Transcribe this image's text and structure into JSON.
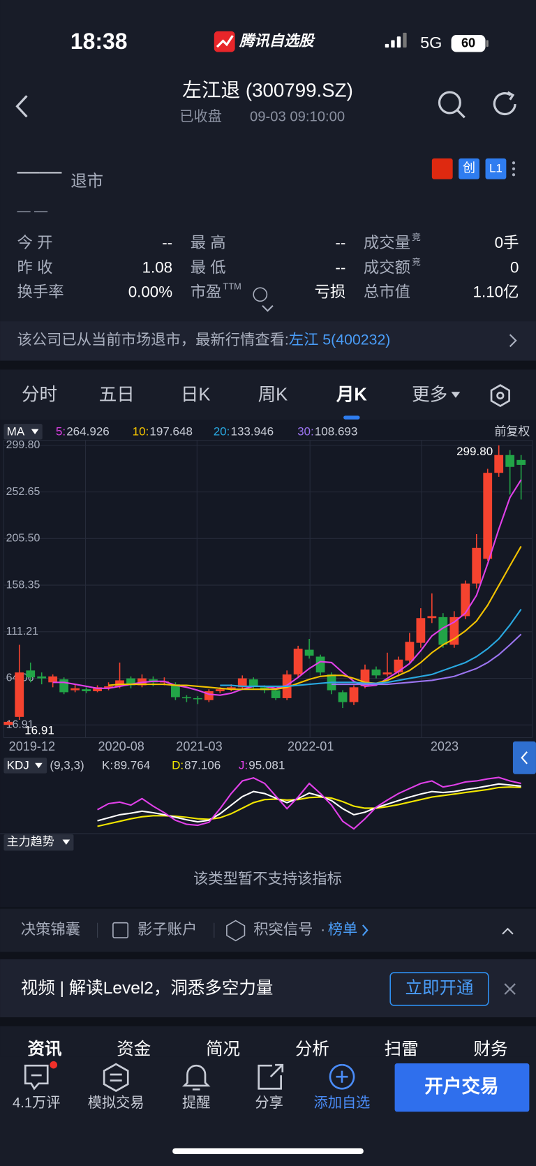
{
  "status_bar": {
    "time": "18:38",
    "app": "腾讯自选股",
    "network": "5G",
    "battery": "60"
  },
  "header": {
    "title": "左江退 (300799.SZ)",
    "status": "已收盘",
    "datetime": "09-03 09:10:00"
  },
  "quote": {
    "price": "——",
    "state": "退市",
    "change": "— —",
    "badges": [
      "创",
      "L1"
    ]
  },
  "stats": [
    [
      {
        "label": "今 开",
        "value": "--"
      },
      {
        "label": "最 高",
        "value": "--"
      },
      {
        "label": "成交量",
        "sup": "竞",
        "value": "0手"
      }
    ],
    [
      {
        "label": "昨 收",
        "value": "1.08"
      },
      {
        "label": "最 低",
        "value": "--"
      },
      {
        "label": "成交额",
        "sup": "竞",
        "value": "0"
      }
    ],
    [
      {
        "label": "换手率",
        "value": "0.00%"
      },
      {
        "label": "市盈",
        "sup": "TTM",
        "value": "亏损"
      },
      {
        "label": "总市值",
        "value": "1.10亿"
      }
    ]
  ],
  "notice": {
    "text": "该公司已从当前市场退市，最新行情查看:",
    "link": "左江 5(400232)"
  },
  "tabs": {
    "items": [
      "分时",
      "五日",
      "日K",
      "周K",
      "月K",
      "更多"
    ],
    "active": 4
  },
  "chart_data": [
    {
      "type": "candlestick",
      "indicator": "MA",
      "adjust": "前复权",
      "up_color": "#f5432f",
      "down_color": "#22a447",
      "categories": [
        null,
        null,
        "2019-12",
        null,
        null,
        null,
        null,
        null,
        null,
        null,
        "2020-08",
        null,
        null,
        null,
        null,
        null,
        null,
        "2021-03",
        null,
        null,
        null,
        null,
        null,
        null,
        null,
        null,
        null,
        "2022-01",
        null,
        null,
        null,
        null,
        null,
        null,
        null,
        null,
        null,
        null,
        null,
        "2023",
        null,
        null,
        null,
        null,
        null,
        null,
        null
      ],
      "open": [
        17,
        25,
        72,
        66,
        60,
        63,
        52,
        53,
        51,
        54,
        56,
        64,
        57,
        63,
        60,
        58,
        45,
        44,
        42,
        51,
        53,
        55,
        63,
        55,
        52,
        44,
        68,
        93,
        86,
        68,
        50,
        40,
        56,
        73,
        68,
        70,
        82,
        100,
        125,
        126,
        98,
        127,
        160,
        185,
        272,
        290,
        285
      ],
      "high": [
        21,
        98,
        80,
        70,
        68,
        65,
        58,
        55,
        57,
        60,
        80,
        66,
        68,
        66,
        65,
        60,
        47,
        46,
        53,
        55,
        58,
        67,
        65,
        57,
        54,
        72,
        97,
        104,
        88,
        70,
        52,
        57,
        78,
        76,
        90,
        86,
        110,
        135,
        150,
        130,
        132,
        163,
        210,
        276,
        299.8,
        295,
        290
      ],
      "low": [
        16.91,
        22,
        60,
        58,
        55,
        48,
        50,
        49,
        50,
        52,
        54,
        54,
        55,
        56,
        57,
        42,
        40,
        38,
        40,
        49,
        51,
        53,
        54,
        49,
        42,
        42,
        65,
        84,
        67,
        48,
        34,
        37,
        54,
        64,
        66,
        68,
        80,
        95,
        120,
        95,
        95,
        124,
        155,
        183,
        268,
        250,
        245
      ],
      "close": [
        20,
        70,
        65,
        64,
        66,
        50,
        54,
        51,
        55,
        56,
        62,
        57,
        64,
        60,
        61,
        45,
        44,
        43,
        51,
        53,
        55,
        64,
        56,
        52,
        44,
        68,
        94,
        87,
        70,
        52,
        40,
        55,
        73,
        67,
        70,
        83,
        101,
        125,
        127,
        98,
        126,
        160,
        196,
        272,
        290,
        278,
        280
      ],
      "high_label": "299.80",
      "low_label": "16.91",
      "series": [
        {
          "name": "5:",
          "color": "#e040e8",
          "values": [
            null,
            null,
            null,
            null,
            60,
            60,
            58,
            56,
            54,
            54,
            56,
            58,
            60,
            61,
            61,
            57,
            55,
            52,
            48,
            47,
            49,
            53,
            56,
            56,
            54,
            57,
            65,
            74,
            81,
            80,
            70,
            61,
            56,
            57,
            64,
            71,
            79,
            92,
            107,
            115,
            121,
            130,
            148,
            180,
            215,
            247,
            264.926
          ],
          "value_labels": "264.926"
        },
        {
          "name": "10:",
          "color": "#f2c200",
          "values": [
            null,
            null,
            null,
            null,
            null,
            null,
            null,
            null,
            null,
            57,
            58,
            58,
            58,
            58,
            58,
            57,
            57,
            56,
            55,
            54,
            53,
            53,
            53,
            53,
            53,
            55,
            59,
            63,
            66,
            67,
            67,
            64,
            60,
            59,
            62,
            67,
            72,
            80,
            90,
            98,
            104,
            112,
            122,
            138,
            158,
            178,
            197.648
          ],
          "value_labels": "197.648"
        },
        {
          "name": "20:",
          "color": "#29a8e0",
          "values": [
            null,
            null,
            null,
            null,
            null,
            null,
            null,
            null,
            null,
            null,
            null,
            null,
            null,
            null,
            null,
            null,
            null,
            null,
            null,
            57,
            57,
            56,
            56,
            56,
            56,
            56,
            57,
            58,
            59,
            60,
            60,
            60,
            59,
            59,
            60,
            62,
            64,
            66,
            68,
            72,
            76,
            80,
            86,
            94,
            104,
            118,
            133.946
          ],
          "value_labels": "133.946"
        },
        {
          "name": "30:",
          "color": "#9b74f0",
          "values": [
            null,
            null,
            null,
            null,
            null,
            null,
            null,
            null,
            null,
            null,
            null,
            null,
            null,
            null,
            null,
            null,
            null,
            null,
            null,
            null,
            null,
            null,
            null,
            null,
            null,
            null,
            null,
            null,
            null,
            58,
            58,
            58,
            58,
            58,
            58,
            59,
            60,
            61,
            62,
            64,
            66,
            70,
            74,
            80,
            88,
            98,
            108.693
          ],
          "value_labels": "108.693"
        }
      ],
      "ylim": [
        4,
        305
      ],
      "yticks": [
        {
          "value": 299.8,
          "label": "299.80"
        },
        252.65,
        {
          "value": 205.5,
          "label": "205.50"
        },
        158.35,
        111.21,
        64.06,
        16.91
      ],
      "grid": true
    },
    {
      "type": "line",
      "indicator": "KDJ",
      "params": "(9,3,3)",
      "ylim": [
        0,
        115
      ],
      "series": [
        {
          "name": "K:",
          "color": "#ffffff",
          "values": [
            null,
            null,
            null,
            null,
            null,
            null,
            null,
            null,
            21,
            27,
            33,
            36,
            40,
            37,
            33,
            28,
            23,
            19,
            22,
            35,
            52,
            69,
            79,
            75,
            66,
            57,
            65,
            76,
            70,
            61,
            45,
            33,
            38,
            47,
            54,
            61,
            68,
            74,
            79,
            77,
            79,
            83,
            86,
            90,
            94,
            92,
            89.764
          ]
        },
        {
          "name": "D:",
          "color": "#f2e600",
          "values": [
            null,
            null,
            null,
            null,
            null,
            null,
            null,
            null,
            10,
            15,
            20,
            25,
            29,
            31,
            31,
            30,
            28,
            25,
            24,
            27,
            35,
            46,
            57,
            63,
            64,
            62,
            63,
            67,
            68,
            66,
            59,
            50,
            46,
            46,
            49,
            53,
            58,
            63,
            68,
            71,
            74,
            77,
            80,
            83,
            87,
            88,
            87.106
          ]
        },
        {
          "name": "J:",
          "color": "#e040e8",
          "values": [
            null,
            null,
            null,
            null,
            null,
            null,
            null,
            null,
            43,
            55,
            58,
            52,
            65,
            50,
            37,
            22,
            14,
            12,
            18,
            45,
            75,
            100,
            106,
            95,
            70,
            45,
            68,
            95,
            75,
            52,
            20,
            5,
            25,
            48,
            62,
            75,
            85,
            95,
            100,
            88,
            92,
            98,
            100,
            104,
            107,
            100,
            95.081
          ]
        }
      ]
    }
  ],
  "indicator3": {
    "name": "主力趋势",
    "message": "该类型暂不支持该指标"
  },
  "toolbar": {
    "items": [
      "决策锦囊",
      "影子账户",
      "积突信号"
    ],
    "separator": "·",
    "link": "榜单"
  },
  "banner": {
    "text": "视频 | 解读Level2，洞悉多空力量",
    "button": "立即开通"
  },
  "section_tabs": [
    "资讯",
    "资金",
    "简况",
    "分析",
    "扫雷",
    "财务"
  ],
  "nav": {
    "items": [
      "4.1万评",
      "模拟交易",
      "提醒",
      "分享",
      "添加自选"
    ],
    "cta": "开户交易"
  }
}
